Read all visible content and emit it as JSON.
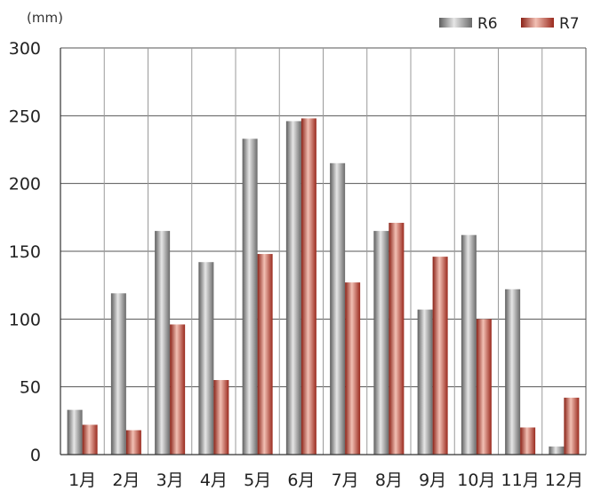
{
  "chart_data": {
    "type": "bar",
    "unit_label": "(mm)",
    "categories": [
      "1月",
      "2月",
      "3月",
      "4月",
      "5月",
      "6月",
      "7月",
      "8月",
      "9月",
      "10月",
      "11月",
      "12月"
    ],
    "series": [
      {
        "name": "R6",
        "values": [
          33,
          119,
          165,
          142,
          233,
          246,
          215,
          165,
          107,
          162,
          122,
          6
        ],
        "color": "#8c8c8c"
      },
      {
        "name": "R7",
        "values": [
          22,
          18,
          96,
          55,
          148,
          248,
          127,
          171,
          146,
          100,
          20,
          42
        ],
        "color": "#b03a2e"
      }
    ],
    "yticks": [
      0,
      50,
      100,
      150,
      200,
      250,
      300
    ],
    "ylim": [
      0,
      300
    ],
    "grid": true,
    "legend": "top-right"
  }
}
